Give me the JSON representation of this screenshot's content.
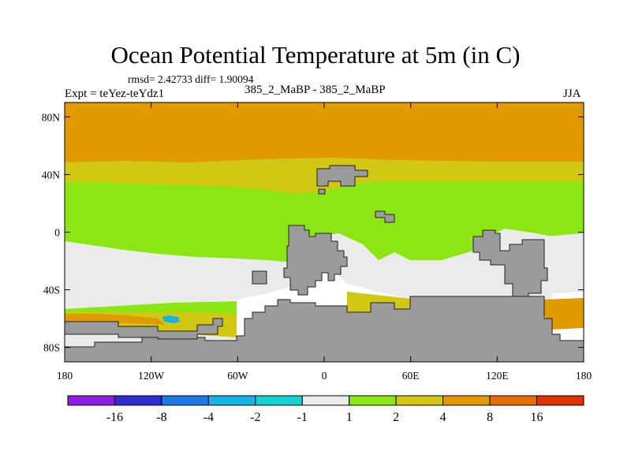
{
  "chart_data": {
    "type": "heatmap",
    "title": "Ocean Potential Temperature at 5m (in C)",
    "stats": "rmsd= 2.42733 diff= 1.90094",
    "experiment": "Expt = teYez-teYdz1",
    "subtitle": "385_2_MaBP - 385_2_MaBP",
    "season": "JJA",
    "x_axis": {
      "range": [
        -180,
        180
      ],
      "tick_values": [
        -180,
        -120,
        -60,
        0,
        60,
        120,
        180
      ],
      "tick_labels": [
        "180",
        "120W",
        "60W",
        "0",
        "60E",
        "120E",
        "180"
      ]
    },
    "y_axis": {
      "range": [
        -90,
        90
      ],
      "tick_values": [
        80,
        40,
        0,
        -40,
        -80
      ],
      "tick_labels": [
        "80N",
        "40N",
        "0",
        "40S",
        "80S"
      ]
    },
    "colorbar": {
      "labels": [
        "-16",
        "-8",
        "-4",
        "-2",
        "-1",
        "1",
        "2",
        "4",
        "8",
        "16"
      ],
      "colors": [
        "#8c1ee6",
        "#2e2ed4",
        "#1e78e6",
        "#14b4e6",
        "#14d2d2",
        "#ebebeb",
        "#8ce614",
        "#d2c814",
        "#e19b00",
        "#e66e00",
        "#e13200"
      ]
    },
    "land_color": "#9b9b9b",
    "latitude_bands": [
      {
        "lat_range": [
          45,
          90
        ],
        "category": "4 to 8"
      },
      {
        "lat_range": [
          32,
          45
        ],
        "category": "2 to 4"
      },
      {
        "lat_range": [
          0,
          32
        ],
        "category": "1 to 2"
      },
      {
        "lat_range": [
          -50,
          0
        ],
        "category": "-1 to 1"
      },
      {
        "lat_range": [
          -90,
          -50
        ],
        "category": "1 to 4"
      }
    ]
  }
}
